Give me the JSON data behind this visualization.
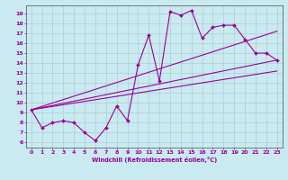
{
  "title": "",
  "xlabel": "Windchill (Refroidissement éolien,°C)",
  "bg_color": "#c8eaf0",
  "grid_color": "#b0ccd4",
  "line_color": "#990099",
  "spine_color": "#666666",
  "xlim": [
    -0.5,
    23.5
  ],
  "ylim": [
    5.5,
    19.8
  ],
  "xticks": [
    0,
    1,
    2,
    3,
    4,
    5,
    6,
    7,
    8,
    9,
    10,
    11,
    12,
    13,
    14,
    15,
    16,
    17,
    18,
    19,
    20,
    21,
    22,
    23
  ],
  "yticks": [
    6,
    7,
    8,
    9,
    10,
    11,
    12,
    13,
    14,
    15,
    16,
    17,
    18,
    19
  ],
  "curve_x": [
    0,
    1,
    2,
    3,
    4,
    5,
    6,
    7,
    8,
    9,
    10,
    11,
    12,
    13,
    14,
    15,
    16,
    17,
    18,
    19,
    20,
    21,
    22,
    23
  ],
  "curve_y": [
    9.3,
    7.5,
    8.0,
    8.2,
    8.0,
    7.0,
    6.2,
    7.5,
    9.7,
    8.2,
    13.8,
    16.8,
    12.2,
    19.2,
    18.8,
    19.3,
    16.5,
    17.6,
    17.8,
    17.8,
    16.4,
    15.0,
    15.0,
    14.3
  ],
  "line1_x": [
    0,
    23
  ],
  "line1_y": [
    9.3,
    14.3
  ],
  "line2_x": [
    0,
    23
  ],
  "line2_y": [
    9.3,
    17.2
  ],
  "line3_x": [
    0,
    23
  ],
  "line3_y": [
    9.3,
    13.2
  ]
}
